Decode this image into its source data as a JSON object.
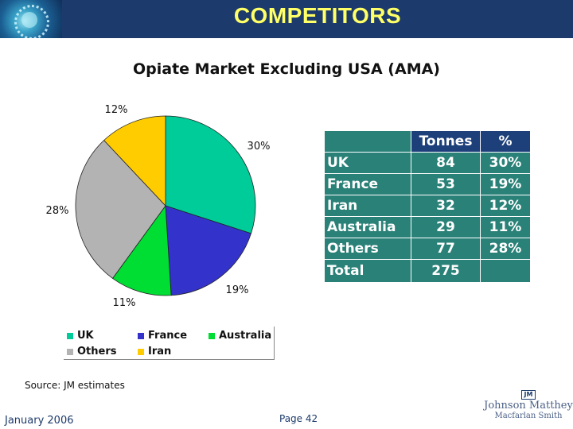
{
  "header": {
    "title": "COMPETITORS"
  },
  "chart_data": {
    "type": "pie",
    "title": "Opiate Market Excluding USA (AMA)",
    "categories": [
      "UK",
      "France",
      "Australia",
      "Others",
      "Iran"
    ],
    "values": [
      30,
      19,
      11,
      28,
      12
    ],
    "labels": [
      "30%",
      "19%",
      "11%",
      "28%",
      "12%"
    ],
    "colors": [
      "#00cc99",
      "#3333cc",
      "#00dd33",
      "#b3b3b3",
      "#ffcc00"
    ],
    "legend": [
      {
        "name": "UK",
        "color": "#00cc99"
      },
      {
        "name": "France",
        "color": "#3333cc"
      },
      {
        "name": "Australia",
        "color": "#00dd33"
      },
      {
        "name": "Others",
        "color": "#b3b3b3"
      },
      {
        "name": "Iran",
        "color": "#ffcc00"
      }
    ],
    "legend_position": "bottom"
  },
  "table": {
    "headers": [
      "",
      "Tonnes",
      "%"
    ],
    "rows": [
      [
        "UK",
        "84",
        "30%"
      ],
      [
        "France",
        "53",
        "19%"
      ],
      [
        "Iran",
        "32",
        "12%"
      ],
      [
        "Australia",
        "29",
        "11%"
      ],
      [
        "Others",
        "77",
        "28%"
      ]
    ],
    "total": [
      "Total",
      "275",
      ""
    ]
  },
  "footer": {
    "source": "Source: JM estimates",
    "date": "January 2006",
    "page": "Page 42"
  },
  "logo": {
    "badge": "JM",
    "line1": "Johnson Matthey",
    "line2": "Macfarlan Smith"
  }
}
